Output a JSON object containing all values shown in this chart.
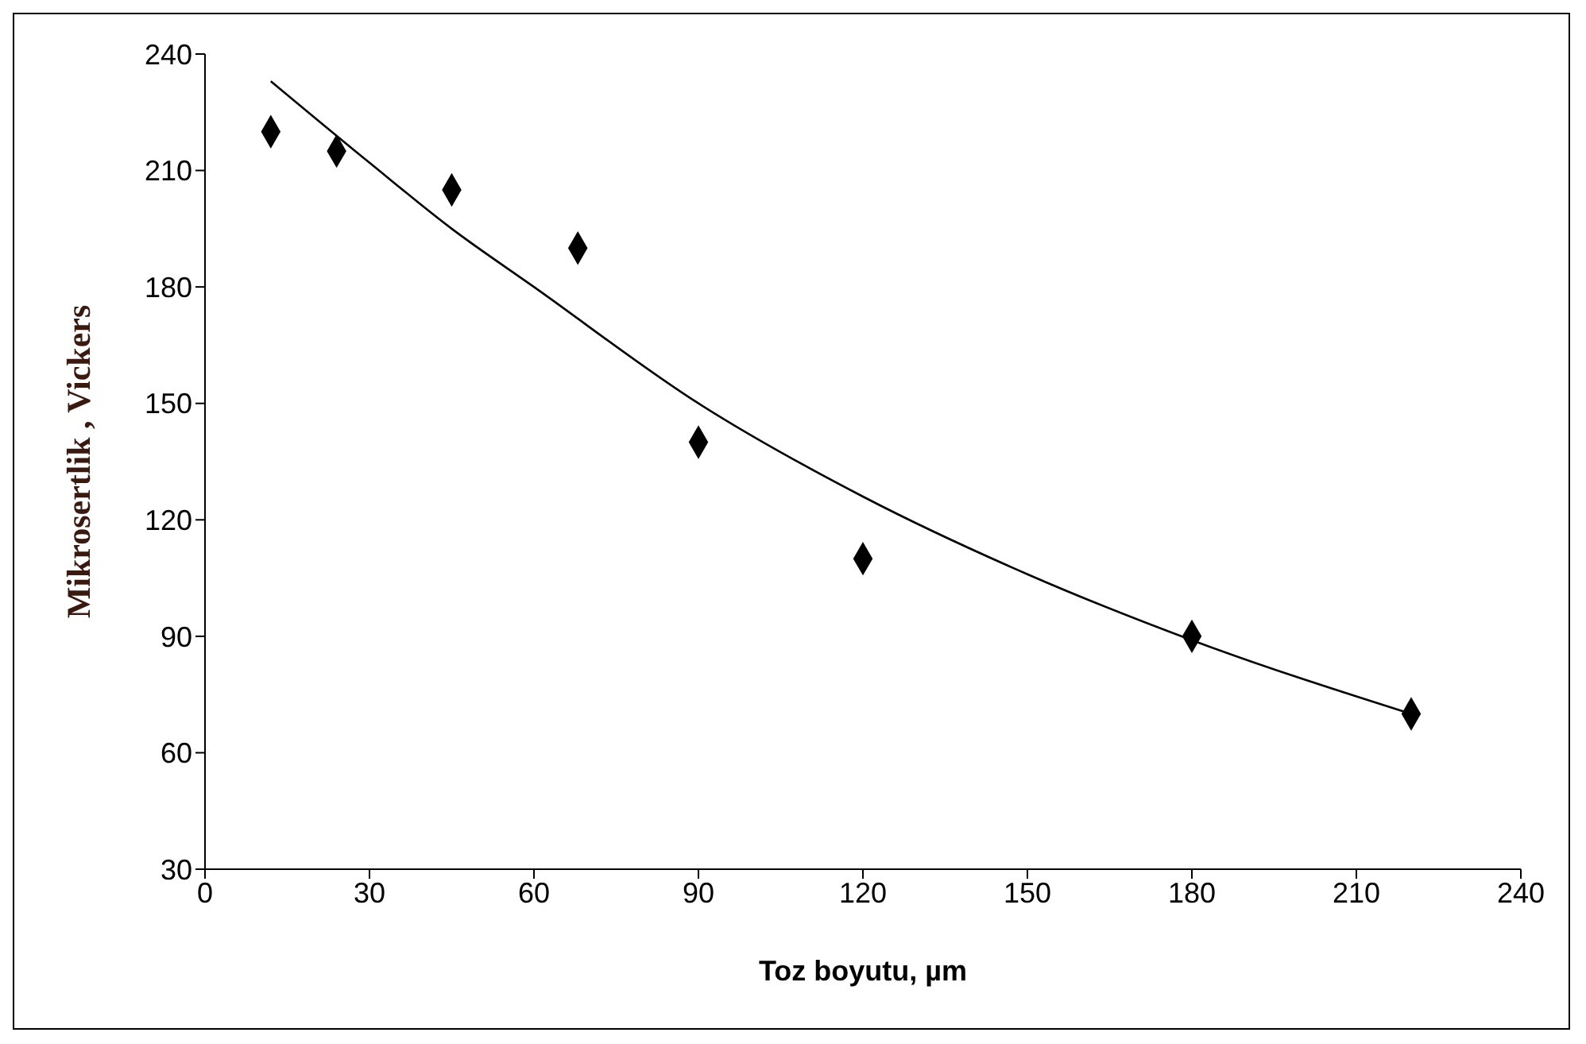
{
  "chart_data": {
    "type": "scatter",
    "xlabel": "Toz boyutu, µm",
    "ylabel": "Mikrosertlik , Vickers",
    "xlim": [
      0,
      240
    ],
    "xticks": [
      0,
      30,
      60,
      90,
      120,
      150,
      180,
      210,
      240
    ],
    "ylim": [
      30,
      240
    ],
    "yticks": [
      30,
      60,
      90,
      120,
      150,
      180,
      210,
      240
    ],
    "grid": false,
    "legend": false,
    "series": [
      {
        "marker": "diamond",
        "color": "#000000",
        "x": [
          12,
          24,
          45,
          68,
          90,
          120,
          180,
          220
        ],
        "values": [
          220,
          215,
          205,
          190,
          140,
          110,
          90,
          70
        ]
      },
      {
        "type": "line",
        "color": "#000000",
        "line_style": "solid",
        "x": [
          12,
          30,
          45,
          60,
          90,
          120,
          150,
          180,
          220
        ],
        "values": [
          233,
          212,
          195,
          180,
          150,
          126,
          106,
          89,
          70
        ]
      }
    ]
  }
}
